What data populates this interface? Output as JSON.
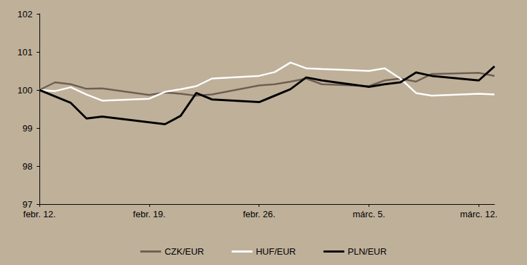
{
  "chart_data": {
    "type": "line",
    "x": [
      0,
      1,
      2,
      3,
      4,
      7,
      8,
      9,
      10,
      11,
      14,
      15,
      16,
      17,
      18,
      21,
      22,
      23,
      24,
      25,
      28,
      29
    ],
    "xlim": [
      0,
      29
    ],
    "xticks": [
      {
        "value": 0,
        "label": "febr. 12."
      },
      {
        "value": 7,
        "label": "febr. 19."
      },
      {
        "value": 14,
        "label": "febr. 26."
      },
      {
        "value": 21,
        "label": "márc. 5."
      },
      {
        "value": 28,
        "label": "márc. 12."
      }
    ],
    "ylim": [
      97,
      102
    ],
    "yticks": [
      97,
      98,
      99,
      100,
      101,
      102
    ],
    "grid": false,
    "legend": "bottom",
    "series": [
      {
        "name": "CZK/EUR",
        "color": "#6e5e52",
        "values": [
          100,
          100.2,
          100.15,
          100.03,
          100.04,
          99.87,
          99.93,
          99.9,
          99.85,
          99.88,
          100.12,
          100.15,
          100.22,
          100.3,
          100.15,
          100.1,
          100.25,
          100.3,
          100.22,
          100.42,
          100.45,
          100.37
        ]
      },
      {
        "name": "HUF/EUR",
        "color": "#ffffff",
        "values": [
          100,
          99.97,
          100.07,
          99.88,
          99.72,
          99.77,
          99.95,
          100.02,
          100.1,
          100.3,
          100.37,
          100.47,
          100.72,
          100.57,
          100.55,
          100.5,
          100.57,
          100.3,
          99.92,
          99.85,
          99.9,
          99.88
        ]
      },
      {
        "name": "PLN/EUR",
        "color": "#000000",
        "values": [
          100,
          99.83,
          99.66,
          99.25,
          99.3,
          99.15,
          99.1,
          99.32,
          99.92,
          99.75,
          99.68,
          99.85,
          100.02,
          100.33,
          100.25,
          100.08,
          100.15,
          100.2,
          100.46,
          100.37,
          100.25,
          100.62
        ]
      }
    ]
  }
}
